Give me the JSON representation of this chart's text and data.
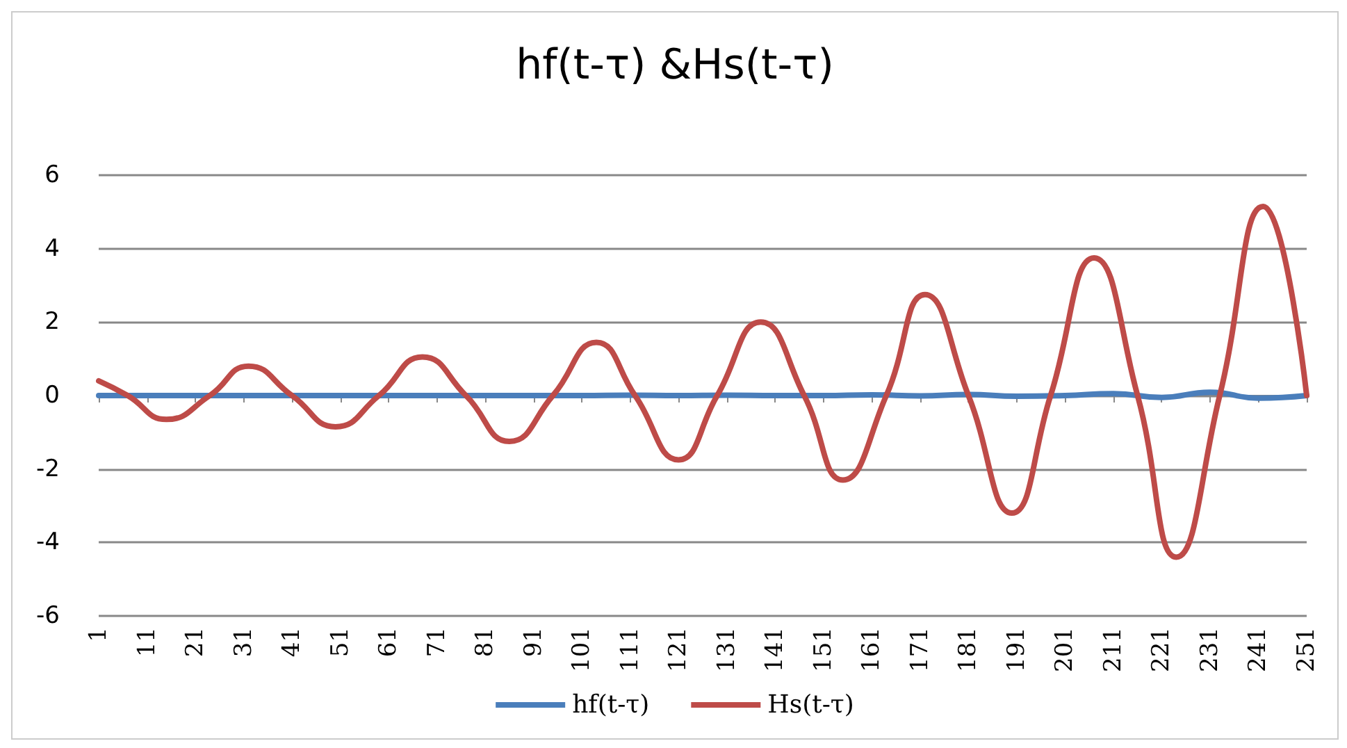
{
  "chart_data": {
    "type": "line",
    "title": "hf(t-τ) &Hs(t-τ)",
    "xlim": [
      1,
      251
    ],
    "xticks": [
      1,
      11,
      21,
      31,
      41,
      51,
      61,
      71,
      81,
      91,
      101,
      111,
      121,
      131,
      141,
      151,
      161,
      171,
      181,
      191,
      201,
      211,
      221,
      231,
      241,
      251
    ],
    "ylim": [
      -6,
      6
    ],
    "yticks": [
      -6,
      -4,
      -2,
      0,
      2,
      4,
      6
    ],
    "grid": "y",
    "legend": "bottom",
    "marker": "none",
    "line_style": "solid",
    "series": [
      {
        "name": "hf(t-τ)",
        "color": "#4a7ebb",
        "x": [
          1,
          11,
          21,
          31,
          41,
          51,
          61,
          71,
          81,
          91,
          101,
          111,
          121,
          131,
          141,
          151,
          161,
          171,
          181,
          191,
          201,
          211,
          221,
          231,
          241,
          251
        ],
        "values": [
          0,
          0,
          0,
          0,
          0,
          0,
          0,
          0,
          0,
          0,
          0,
          0.01,
          0,
          0.01,
          0,
          0,
          0.02,
          -0.01,
          0.03,
          -0.02,
          0,
          0.05,
          -0.05,
          0.09,
          -0.07,
          0
        ]
      },
      {
        "name": "Hs(t-τ)",
        "color": "#be4b48",
        "x": [
          1,
          7,
          15,
          24,
          32,
          41,
          50,
          59,
          68,
          77,
          86,
          95,
          104,
          112,
          121,
          129,
          138,
          147,
          155,
          164,
          172,
          181,
          190,
          198,
          207,
          216,
          224,
          233,
          242,
          251
        ],
        "values": [
          0.4,
          0,
          -0.65,
          0,
          0.8,
          0,
          -0.85,
          0,
          1.05,
          0,
          -1.25,
          0,
          1.45,
          0,
          -1.75,
          0,
          2.0,
          0,
          -2.3,
          0,
          2.75,
          0,
          -3.2,
          0,
          3.75,
          0,
          -4.4,
          0,
          5.15,
          0
        ]
      }
    ]
  }
}
